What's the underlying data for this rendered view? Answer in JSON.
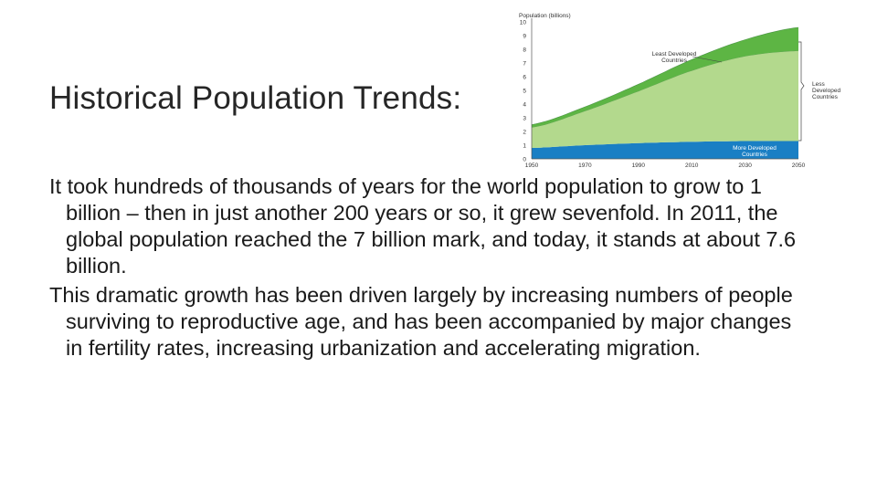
{
  "slide": {
    "title": "Historical Population Trends:",
    "paragraphs": [
      "It took hundreds of thousands of years for the world population to grow to 1 billion – then in just another 200 years or so, it grew sevenfold. In 2011, the global population reached the 7 billion mark, and today, it stands at about 7.6 billion.",
      "This dramatic growth has been driven largely by increasing numbers of people surviving to reproductive age, and has been accompanied by major changes in fertility rates, increasing urbanization and accelerating migration."
    ]
  },
  "chart_data": {
    "type": "area",
    "ylabel": "Population (billions)",
    "x": [
      1950,
      1970,
      1990,
      2010,
      2030,
      2050
    ],
    "x_ticks": [
      "1950",
      "1970",
      "1990",
      "2010",
      "2030",
      "2050"
    ],
    "y_ticks": [
      "0",
      "1",
      "2",
      "3",
      "4",
      "5",
      "6",
      "7",
      "8",
      "9",
      "10"
    ],
    "ylim": [
      0,
      10
    ],
    "stacked": true,
    "series": [
      {
        "name": "More Developed Countries",
        "values": [
          0.8,
          1.0,
          1.15,
          1.25,
          1.3,
          1.3
        ],
        "color": "#1a7fc4"
      },
      {
        "name": "Less Developed Countries",
        "values": [
          1.5,
          2.5,
          3.8,
          5.2,
          6.2,
          6.6
        ],
        "color": "#b3d98d"
      },
      {
        "name": "Least Developed Countries",
        "values": [
          0.2,
          0.3,
          0.5,
          0.8,
          1.2,
          1.7
        ],
        "color": "#5db544"
      }
    ],
    "callouts": {
      "least": [
        "Least Developed",
        "Countries"
      ],
      "less": [
        "Less",
        "Developed",
        "Countries"
      ],
      "more": [
        "More Developed",
        "Countries"
      ]
    }
  }
}
